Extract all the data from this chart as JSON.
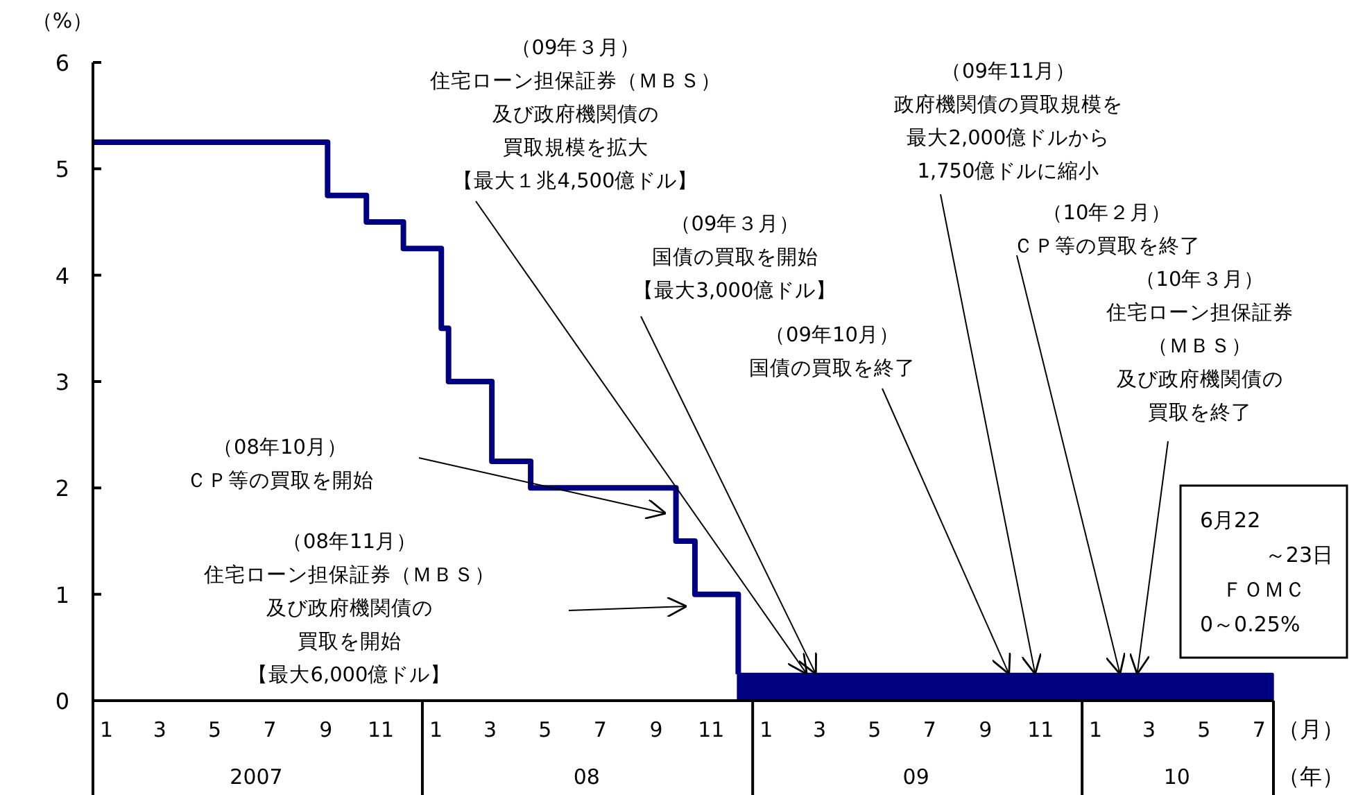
{
  "chart_data": {
    "type": "step",
    "ylabel": "（%）",
    "xlabel": "（月）",
    "x2label": "（年）",
    "xlim": [
      "2007-01-01",
      "2010-08-01"
    ],
    "ylim": [
      0,
      6
    ],
    "yticks": [
      0,
      1,
      2,
      3,
      4,
      5,
      6
    ],
    "xticks": [
      {
        "value": "2007-01-16",
        "label": "1"
      },
      {
        "value": "2007-03-16",
        "label": "3"
      },
      {
        "value": "2007-05-16",
        "label": "5"
      },
      {
        "value": "2007-07-16",
        "label": "7"
      },
      {
        "value": "2007-09-16",
        "label": "9"
      },
      {
        "value": "2007-11-16",
        "label": "11"
      },
      {
        "value": "2008-01-16",
        "label": "1"
      },
      {
        "value": "2008-03-16",
        "label": "3"
      },
      {
        "value": "2008-05-16",
        "label": "5"
      },
      {
        "value": "2008-07-16",
        "label": "7"
      },
      {
        "value": "2008-09-16",
        "label": "9"
      },
      {
        "value": "2008-11-16",
        "label": "11"
      },
      {
        "value": "2009-01-16",
        "label": "1"
      },
      {
        "value": "2009-03-16",
        "label": "3"
      },
      {
        "value": "2009-05-16",
        "label": "5"
      },
      {
        "value": "2009-07-16",
        "label": "7"
      },
      {
        "value": "2009-09-16",
        "label": "9"
      },
      {
        "value": "2009-11-16",
        "label": "11"
      },
      {
        "value": "2010-01-16",
        "label": "1"
      },
      {
        "value": "2010-03-16",
        "label": "3"
      },
      {
        "value": "2010-05-16",
        "label": "5"
      },
      {
        "value": "2010-07-16",
        "label": "7"
      }
    ],
    "x2lim": [
      "2007-01-01",
      "2010-08-01"
    ],
    "x2ticks": [
      {
        "value": "2007-07-01",
        "label": "2007"
      },
      {
        "value": "2008-07-01",
        "label": "08"
      },
      {
        "value": "2009-07-01",
        "label": "09"
      },
      {
        "value": "2010-04-16",
        "label": "10"
      }
    ],
    "series": [
      {
        "color": "#000080",
        "x": [
          "2007-01-01",
          "2007-09-18",
          "2007-10-31",
          "2007-12-11",
          "2008-01-22",
          "2008-01-30",
          "2008-03-18",
          "2008-04-30",
          "2008-10-08",
          "2008-10-29",
          "2008-12-16"
        ],
        "values": [
          5.25,
          4.75,
          4.5,
          4.25,
          3.5,
          3.0,
          2.25,
          2.0,
          1.5,
          1.0,
          0.25
        ]
      },
      {
        "type": "area",
        "color": "#000080",
        "x": [
          "2008-12-16",
          "2010-07-31"
        ],
        "values": [
          0.25,
          0.25
        ]
      }
    ],
    "annotations": [
      {
        "text": "（09年３月）住宅ローン担保証券（ＭＢＳ）及び政府機関債の買取規模を拡大【最大１兆4,500億ドル】",
        "x": "2009-03-02",
        "y": 0.25
      },
      {
        "text": "（09年３月）国債の買取を開始【最大3,000億ドル】",
        "x": "2009-03-12",
        "y": 0.25
      },
      {
        "text": "（09年11月）政府機関債の買取規模を最大2,000億ドルから1,750億ドルに縮小",
        "x": "2009-11-10",
        "y": 0.25
      },
      {
        "text": "（10年２月）ＣＰ等の買取を終了",
        "x": "2010-02-12",
        "y": 0.25
      },
      {
        "text": "（09年10月）国債の買取を終了",
        "x": "2009-10-12",
        "y": 0.25
      },
      {
        "text": "（10年３月）住宅ローン担保証券（ＭＢＳ）及び政府機関債の買取を終了",
        "x": "2010-03-03",
        "y": 0.25
      },
      "（08年10月）ＣＰ等の買取を開始",
      "（08年11月）住宅ローン担保証券（ＭＢＳ）及び政府機関債の買取を開始【最大6,000億ドル】",
      "6月22～23日ＦＯＭＣ0～0.25%"
    ]
  }
}
